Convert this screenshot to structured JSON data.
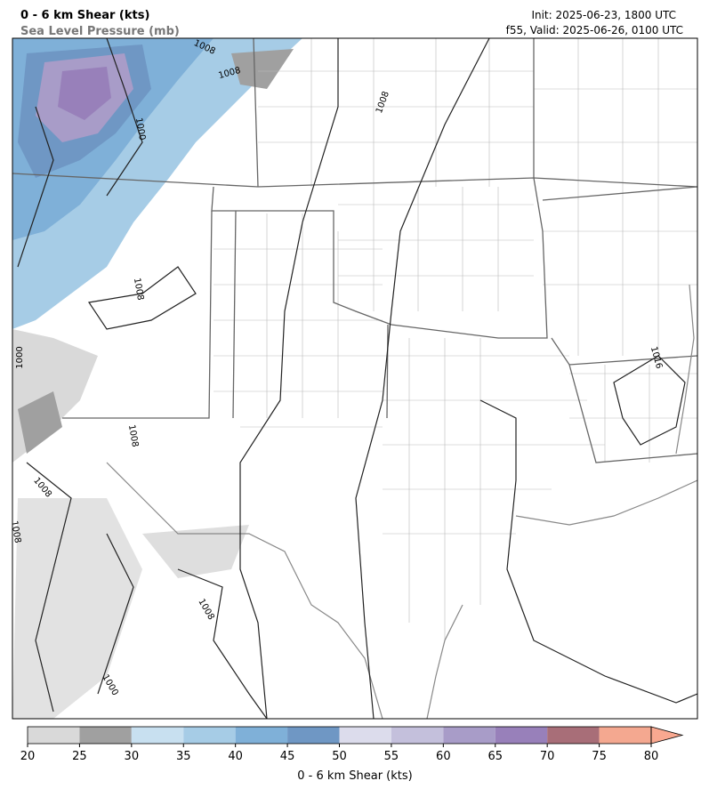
{
  "header": {
    "title": "0 - 6 km Shear (kts)",
    "subtitle": "Sea Level Pressure (mb)",
    "init": "Init: 2025-06-23, 1800 UTC",
    "valid": "f55, Valid: 2025-06-26, 0100 UTC"
  },
  "contour_labels": [
    1008,
    1008,
    1008,
    1000,
    1008,
    1000,
    1008,
    1008,
    1008,
    1016,
    1008,
    1000
  ],
  "colorbar": {
    "label": "0 - 6 km Shear (kts)",
    "ticks": [
      20,
      25,
      30,
      35,
      40,
      45,
      50,
      55,
      60,
      65,
      70,
      75,
      80
    ],
    "colors": [
      "#d9d9d9",
      "#a0a0a0",
      "#c8e0f0",
      "#a6cce6",
      "#7fb0d8",
      "#6f97c4",
      "#dcdcec",
      "#c4c0dc",
      "#a89cc8",
      "#9880ba",
      "#a86e78",
      "#f4a890"
    ],
    "extend_color": "#f9a890"
  }
}
